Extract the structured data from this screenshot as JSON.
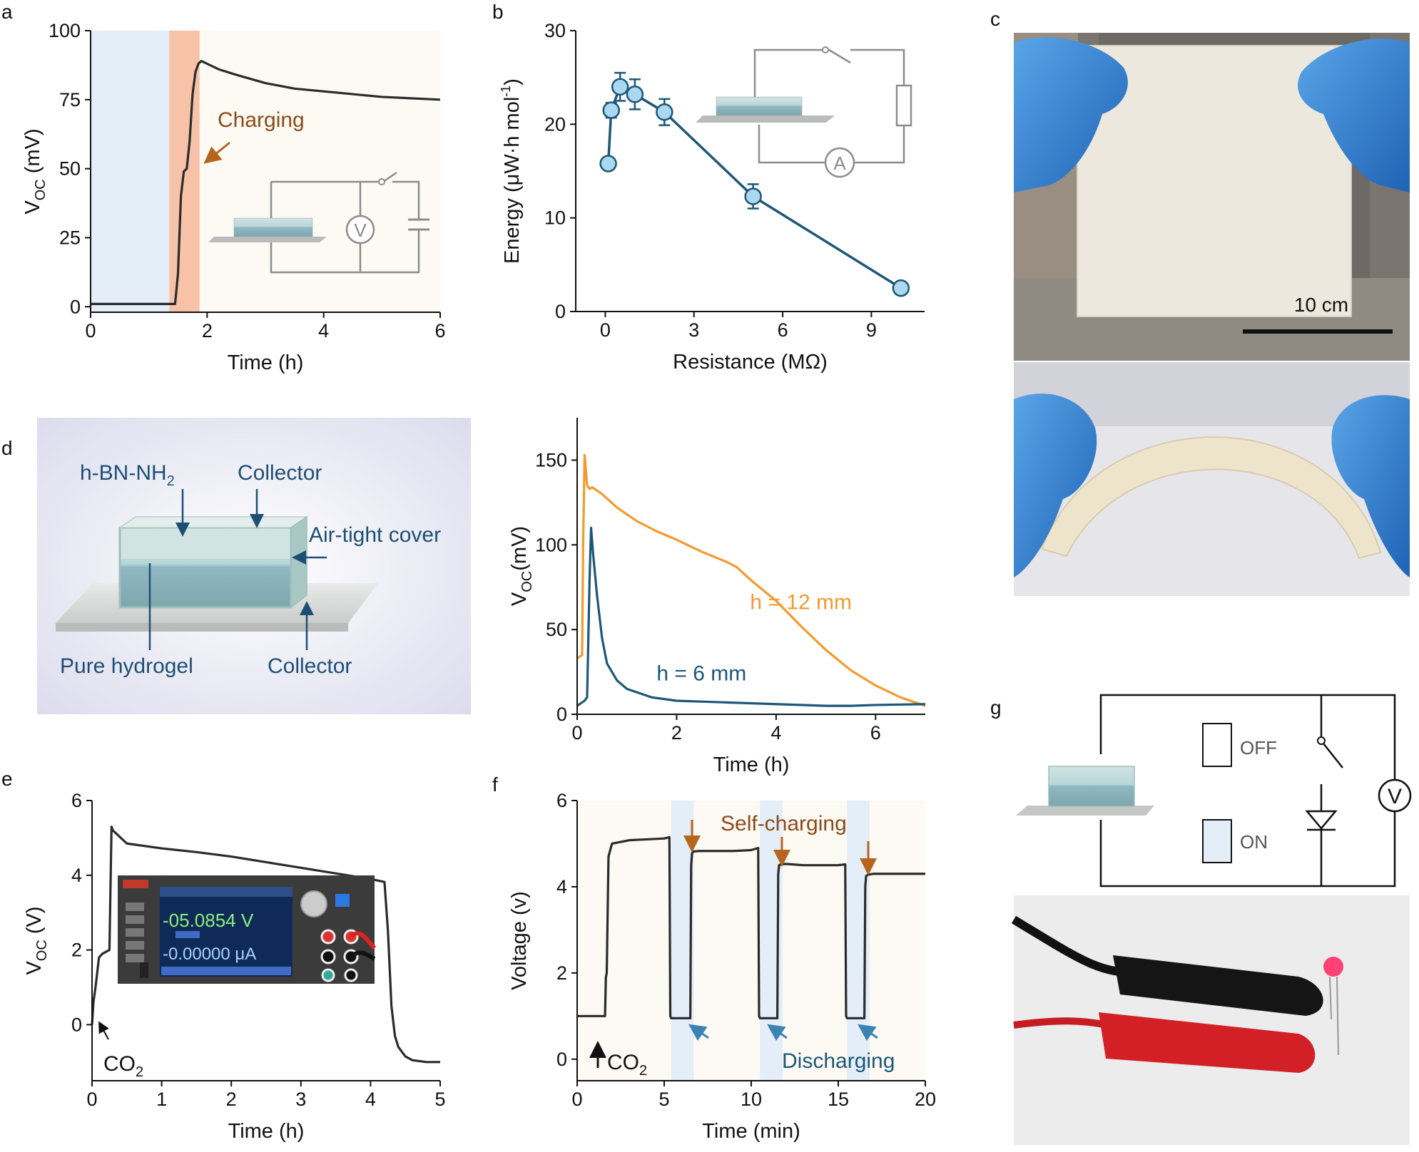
{
  "panel_labels": {
    "a": "a",
    "b": "b",
    "c": "c",
    "d": "d",
    "e": "e",
    "f": "f",
    "g": "g"
  },
  "colors": {
    "axis": "#111111",
    "trace": "#2b2b2b",
    "blue": "#1d5777",
    "orange": "#f39a2e",
    "brown": "#8b4a1a",
    "arrow_blue": "#3b83b3",
    "bg_blue": "#e3eef9",
    "bg_orange": "#f7c2a8",
    "bg_plot": "#fdfaf4",
    "wire": "#8c8c8c"
  },
  "panel_a": {
    "annotation": "Charging",
    "inset_meter": "V",
    "chart_data": {
      "type": "line",
      "xlabel": "Time (h)",
      "ylabel": "V",
      "ylabel_sub": "OC",
      "ylabel_unit": " (mV)",
      "xlim": [
        0,
        6
      ],
      "ylim": [
        -2,
        100
      ],
      "xticks": [
        "0",
        "2",
        "4",
        "6"
      ],
      "yticks": [
        "0",
        "25",
        "50",
        "75",
        "100"
      ],
      "xtick_values": [
        0,
        2,
        4,
        6
      ],
      "ytick_values": [
        0,
        25,
        50,
        75,
        100
      ],
      "shaded_regions": [
        {
          "from": 0,
          "to": 1.35,
          "color": "blue"
        },
        {
          "from": 1.35,
          "to": 1.87,
          "color": "orange"
        }
      ],
      "series": [
        {
          "x": [
            0,
            0.5,
            1.0,
            1.45,
            1.5,
            1.55,
            1.6,
            1.65,
            1.7,
            1.75,
            1.8,
            1.85,
            1.9,
            2.0,
            2.2,
            2.5,
            3.0,
            3.5,
            4.0,
            4.5,
            5.0,
            5.5,
            6.0
          ],
          "y": [
            1,
            1,
            1,
            1,
            12,
            40,
            49,
            50,
            60,
            77,
            85,
            88,
            89,
            88,
            86,
            84,
            81,
            79,
            78,
            77,
            76,
            75.5,
            75
          ]
        }
      ]
    }
  },
  "panel_b": {
    "inset_meter": "A",
    "chart_data": {
      "type": "scatter",
      "xlabel": "Resistance (MΩ)",
      "ylabel": "Energy (μW·h mol",
      "ylabel_sup": "-1",
      "ylabel_close": ")",
      "xlim": [
        -1,
        10.8
      ],
      "ylim": [
        0,
        30
      ],
      "xticks": [
        "0",
        "3",
        "6",
        "9"
      ],
      "yticks": [
        "0",
        "10",
        "20",
        "30"
      ],
      "xtick_values": [
        0,
        3,
        6,
        9
      ],
      "ytick_values": [
        0,
        10,
        20,
        30
      ],
      "series": [
        {
          "x": [
            0.1,
            0.2,
            0.5,
            1.0,
            2.0,
            5.0,
            10.0
          ],
          "y": [
            15.8,
            21.5,
            24.0,
            23.2,
            21.3,
            12.3,
            2.5
          ],
          "err": [
            0,
            0.8,
            1.5,
            1.6,
            1.4,
            1.3,
            0.6
          ]
        }
      ]
    }
  },
  "panel_c": {
    "scale_label": "10 cm"
  },
  "panel_d": {
    "schematic": {
      "h_bn": "h-BN-NH",
      "h_bn_sub": "2",
      "collector_top": "Collector",
      "air_tight": "Air-tight cover",
      "pure_hydrogel": "Pure hydrogel",
      "collector_bottom": "Collector"
    },
    "chart_data": {
      "type": "line",
      "xlabel": "Time (h)",
      "ylabel": "V",
      "ylabel_sub": "OC",
      "ylabel_unit": "(mV)",
      "xlim": [
        0,
        7
      ],
      "ylim": [
        0,
        175
      ],
      "xticks": [
        "0",
        "2",
        "4",
        "6"
      ],
      "yticks": [
        "0",
        "50",
        "100",
        "150"
      ],
      "xtick_values": [
        0,
        2,
        4,
        6
      ],
      "ytick_values": [
        0,
        50,
        100,
        150
      ],
      "series": [
        {
          "name": "h = 12 mm",
          "color": "orange",
          "x": [
            0,
            0.1,
            0.12,
            0.15,
            0.2,
            0.25,
            0.3,
            0.5,
            0.8,
            1.2,
            1.6,
            2.0,
            2.5,
            3.0,
            3.2,
            3.5,
            4.0,
            4.5,
            5.0,
            5.5,
            6.0,
            6.5,
            7.0
          ],
          "y": [
            33,
            35,
            100,
            153,
            135,
            133,
            134,
            130,
            122,
            114,
            108,
            103,
            96,
            90,
            87,
            79,
            67,
            52,
            38,
            26,
            17,
            10,
            5
          ]
        },
        {
          "name": "h = 6 mm",
          "color": "blue",
          "x": [
            0,
            0.15,
            0.2,
            0.25,
            0.28,
            0.32,
            0.4,
            0.5,
            0.6,
            0.8,
            1.0,
            1.5,
            2.0,
            3.0,
            4.0,
            5.0,
            5.5,
            6.0,
            7.0
          ],
          "y": [
            5,
            8,
            10,
            80,
            110,
            95,
            70,
            45,
            30,
            20,
            15,
            10,
            8,
            7,
            6,
            5,
            5,
            5.5,
            6
          ]
        }
      ]
    }
  },
  "panel_e": {
    "inset_display_v": "-05.0854 V",
    "inset_display_a": "-0.00000 μA",
    "co2_label": "CO",
    "co2_sub": "2",
    "chart_data": {
      "type": "line",
      "xlabel": "Time (h)",
      "ylabel": "V",
      "ylabel_sub": "OC",
      "ylabel_unit": " (V)",
      "xlim": [
        0,
        5
      ],
      "ylim": [
        -1.5,
        6
      ],
      "xticks": [
        "0",
        "1",
        "2",
        "3",
        "4",
        "5"
      ],
      "yticks": [
        "0",
        "2",
        "4",
        "6"
      ],
      "xtick_values": [
        0,
        1,
        2,
        3,
        4,
        5
      ],
      "ytick_values": [
        0,
        2,
        4,
        6
      ],
      "series": [
        {
          "x": [
            0,
            0.02,
            0.05,
            0.1,
            0.15,
            0.2,
            0.25,
            0.28,
            0.3,
            0.5,
            1.0,
            1.5,
            2.0,
            2.5,
            3.0,
            3.5,
            4.0,
            4.2,
            4.25,
            4.3,
            4.35,
            4.4,
            4.5,
            4.6,
            4.8,
            5.0
          ],
          "y": [
            0,
            0.6,
            1.0,
            1.8,
            1.9,
            1.95,
            2.0,
            5.3,
            5.2,
            4.85,
            4.72,
            4.62,
            4.5,
            4.35,
            4.2,
            4.05,
            3.9,
            3.82,
            2.5,
            0.5,
            -0.3,
            -0.6,
            -0.85,
            -0.95,
            -1.0,
            -1.0
          ]
        }
      ]
    }
  },
  "panel_f": {
    "self_charging": "Self-charging",
    "discharging": "Discharging",
    "co2_label": "CO",
    "co2_sub": "2",
    "chart_data": {
      "type": "line",
      "xlabel": "Time (min)",
      "ylabel": "Voltage (v)",
      "xlim": [
        0,
        20
      ],
      "ylim": [
        -0.5,
        6
      ],
      "xticks": [
        "0",
        "5",
        "10",
        "15",
        "20"
      ],
      "yticks": [
        "0",
        "2",
        "4",
        "6"
      ],
      "xtick_values": [
        0,
        5,
        10,
        15,
        20
      ],
      "ytick_values": [
        0,
        2,
        4,
        6
      ],
      "shaded_regions": [
        {
          "from": 5.4,
          "to": 6.7
        },
        {
          "from": 10.5,
          "to": 11.8
        },
        {
          "from": 15.5,
          "to": 16.8
        }
      ],
      "series": [
        {
          "x": [
            0,
            1.5,
            1.6,
            1.65,
            1.7,
            1.8,
            2.0,
            3.0,
            4.0,
            5.0,
            5.3,
            5.35,
            5.4,
            6.5,
            6.55,
            6.6,
            6.7,
            7.0,
            8.0,
            9.0,
            10.0,
            10.4,
            10.45,
            10.5,
            11.5,
            11.55,
            11.6,
            11.7,
            12.0,
            13.0,
            14.0,
            15.0,
            15.4,
            15.45,
            15.5,
            16.5,
            16.55,
            16.6,
            16.7,
            17.0,
            18.0,
            19.0,
            20.0
          ],
          "y": [
            1.0,
            1.0,
            1.0,
            1.9,
            2.0,
            4.7,
            5.0,
            5.08,
            5.1,
            5.12,
            5.15,
            1.0,
            0.95,
            0.95,
            4.5,
            4.78,
            4.82,
            4.83,
            4.83,
            4.83,
            4.85,
            4.9,
            1.0,
            0.95,
            0.95,
            4.3,
            4.5,
            4.52,
            4.53,
            4.5,
            4.5,
            4.5,
            4.52,
            1.0,
            0.95,
            0.95,
            4.0,
            4.25,
            4.28,
            4.3,
            4.3,
            4.3,
            4.3
          ]
        }
      ]
    }
  },
  "panel_g": {
    "off_label": "OFF",
    "on_label": "ON",
    "meter": "V"
  }
}
